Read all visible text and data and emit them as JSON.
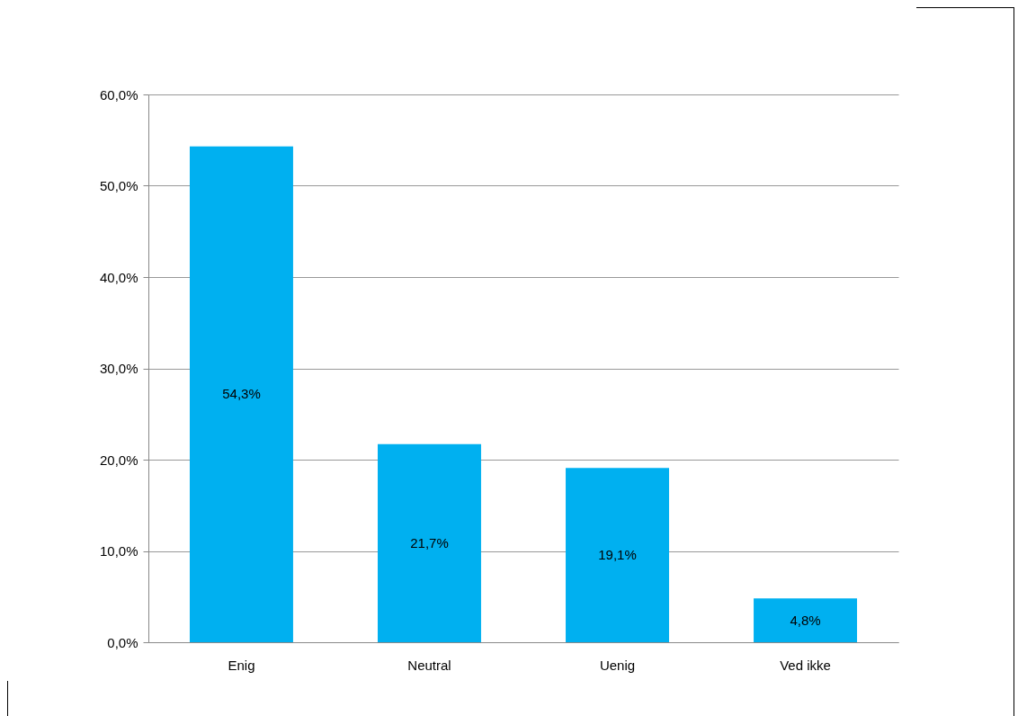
{
  "chart_data": {
    "type": "bar",
    "categories": [
      "Enig",
      "Neutral",
      "Uenig",
      "Ved ikke"
    ],
    "values": [
      54.3,
      21.7,
      19.1,
      4.8
    ],
    "color": "#00b0f0",
    "value_labels": [
      "54,3%",
      "21,7%",
      "19,1%",
      "4,8%"
    ],
    "ylim": [
      0,
      60
    ],
    "yticks": [
      {
        "value": 0,
        "label": "0,0%"
      },
      {
        "value": 10,
        "label": "10,0%"
      },
      {
        "value": 20,
        "label": "20,0%"
      },
      {
        "value": 30,
        "label": "30,0%"
      },
      {
        "value": 40,
        "label": "40,0%"
      },
      {
        "value": 50,
        "label": "50,0%"
      },
      {
        "value": 60,
        "label": "60,0%"
      }
    ],
    "grid": "y"
  }
}
